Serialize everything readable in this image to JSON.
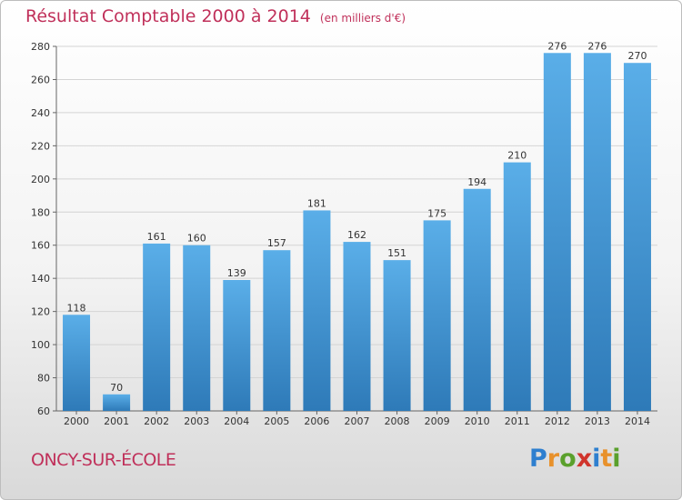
{
  "header": {
    "title": "Résultat Comptable 2000 à 2014",
    "subtitle": "(en milliers d'€)"
  },
  "footer": {
    "city": "ONCY-SUR-ÉCOLE",
    "logo_letters": [
      "P",
      "r",
      "o",
      "x",
      "i",
      "t",
      "i"
    ],
    "logo_colors": [
      "#2e7fcf",
      "#e8912b",
      "#5aa02c",
      "#d0342c",
      "#2e7fcf",
      "#e8912b",
      "#5aa02c"
    ]
  },
  "colors": {
    "bar_top": "#5aaee8",
    "bar_bottom": "#2e7ab8",
    "text_accent": "#c0305a"
  },
  "chart_data": {
    "type": "bar",
    "title": "Résultat Comptable 2000 à 2014",
    "subtitle": "(en milliers d'€)",
    "categories": [
      "2000",
      "2001",
      "2002",
      "2003",
      "2004",
      "2005",
      "2006",
      "2007",
      "2008",
      "2009",
      "2010",
      "2011",
      "2012",
      "2013",
      "2014"
    ],
    "values": [
      118,
      70,
      161,
      160,
      139,
      157,
      181,
      162,
      151,
      175,
      194,
      210,
      276,
      276,
      270
    ],
    "ylim": [
      60,
      280
    ],
    "yticks": [
      60,
      80,
      100,
      120,
      140,
      160,
      180,
      200,
      220,
      240,
      260,
      280
    ],
    "grid": true,
    "data_labels": true
  }
}
